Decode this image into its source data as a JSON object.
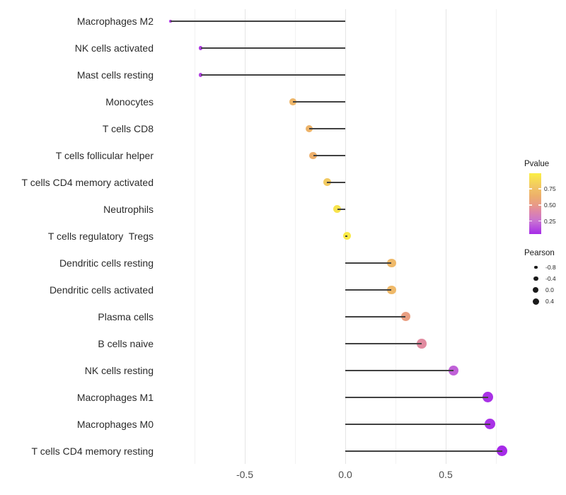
{
  "chart_data": {
    "type": "scatter",
    "subtype": "lollipop",
    "title": "",
    "xlabel": "",
    "ylabel": "",
    "x_axis": {
      "ticks": [
        -0.5,
        0.0,
        0.5
      ],
      "tick_labels": [
        "-0.5",
        "0.0",
        "0.5"
      ],
      "minor_gridlines": [
        -0.75,
        -0.25,
        0.25,
        0.75
      ],
      "xlim": [
        -0.95,
        0.88
      ],
      "grid": "vertical-only"
    },
    "rows": [
      {
        "label": "Macrophages M2",
        "pearson": -0.87,
        "pvalue": 0.1
      },
      {
        "label": "NK cells activated",
        "pearson": -0.72,
        "pvalue": 0.1
      },
      {
        "label": "Mast cells resting",
        "pearson": -0.72,
        "pvalue": 0.12
      },
      {
        "label": "Monocytes",
        "pearson": -0.26,
        "pvalue": 0.68
      },
      {
        "label": "T cells CD8",
        "pearson": -0.18,
        "pvalue": 0.66
      },
      {
        "label": "T cells follicular helper",
        "pearson": -0.16,
        "pvalue": 0.64
      },
      {
        "label": "T cells CD4 memory activated",
        "pearson": -0.09,
        "pvalue": 0.8
      },
      {
        "label": "Neutrophils",
        "pearson": -0.04,
        "pvalue": 0.93
      },
      {
        "label": "T cells regulatory  Tregs",
        "pearson": 0.01,
        "pvalue": 0.97
      },
      {
        "label": "Dendritic cells resting",
        "pearson": 0.23,
        "pvalue": 0.7
      },
      {
        "label": "Dendritic cells activated",
        "pearson": 0.23,
        "pvalue": 0.7
      },
      {
        "label": "Plasma cells",
        "pearson": 0.3,
        "pvalue": 0.53
      },
      {
        "label": "B cells naive",
        "pearson": 0.38,
        "pvalue": 0.42
      },
      {
        "label": "NK cells resting",
        "pearson": 0.54,
        "pvalue": 0.2
      },
      {
        "label": "Macrophages M1",
        "pearson": 0.71,
        "pvalue": 0.07
      },
      {
        "label": "Macrophages M0",
        "pearson": 0.72,
        "pvalue": 0.07
      },
      {
        "label": "T cells CD4 memory resting",
        "pearson": 0.78,
        "pvalue": 0.05
      }
    ],
    "color_legend": {
      "title": "Pvalue",
      "position": "right",
      "range": [
        0.05,
        0.99
      ],
      "tick_values": [
        0.75,
        0.5,
        0.25
      ],
      "tick_labels": [
        "0.75",
        "0.50",
        "0.25"
      ],
      "gradient_stops": [
        {
          "p": 0.05,
          "color": "#A62BE8"
        },
        {
          "p": 0.25,
          "color": "#C873D2"
        },
        {
          "p": 0.4,
          "color": "#DF87A6"
        },
        {
          "p": 0.5,
          "color": "#E89A88"
        },
        {
          "p": 0.65,
          "color": "#EDB169"
        },
        {
          "p": 0.75,
          "color": "#F0C168"
        },
        {
          "p": 0.99,
          "color": "#FBEE44"
        }
      ]
    },
    "size_legend": {
      "title": "Pearson",
      "position": "right",
      "dot_color": "#1a1a1a",
      "entries": [
        {
          "label": "-0.8",
          "diameter": 4.5
        },
        {
          "label": "-0.4",
          "diameter": 6.5
        },
        {
          "label": "0.0",
          "diameter": 8.0
        },
        {
          "label": "0.4",
          "diameter": 9.0
        }
      ]
    },
    "stem_color": "#414141",
    "background": "#ffffff"
  }
}
